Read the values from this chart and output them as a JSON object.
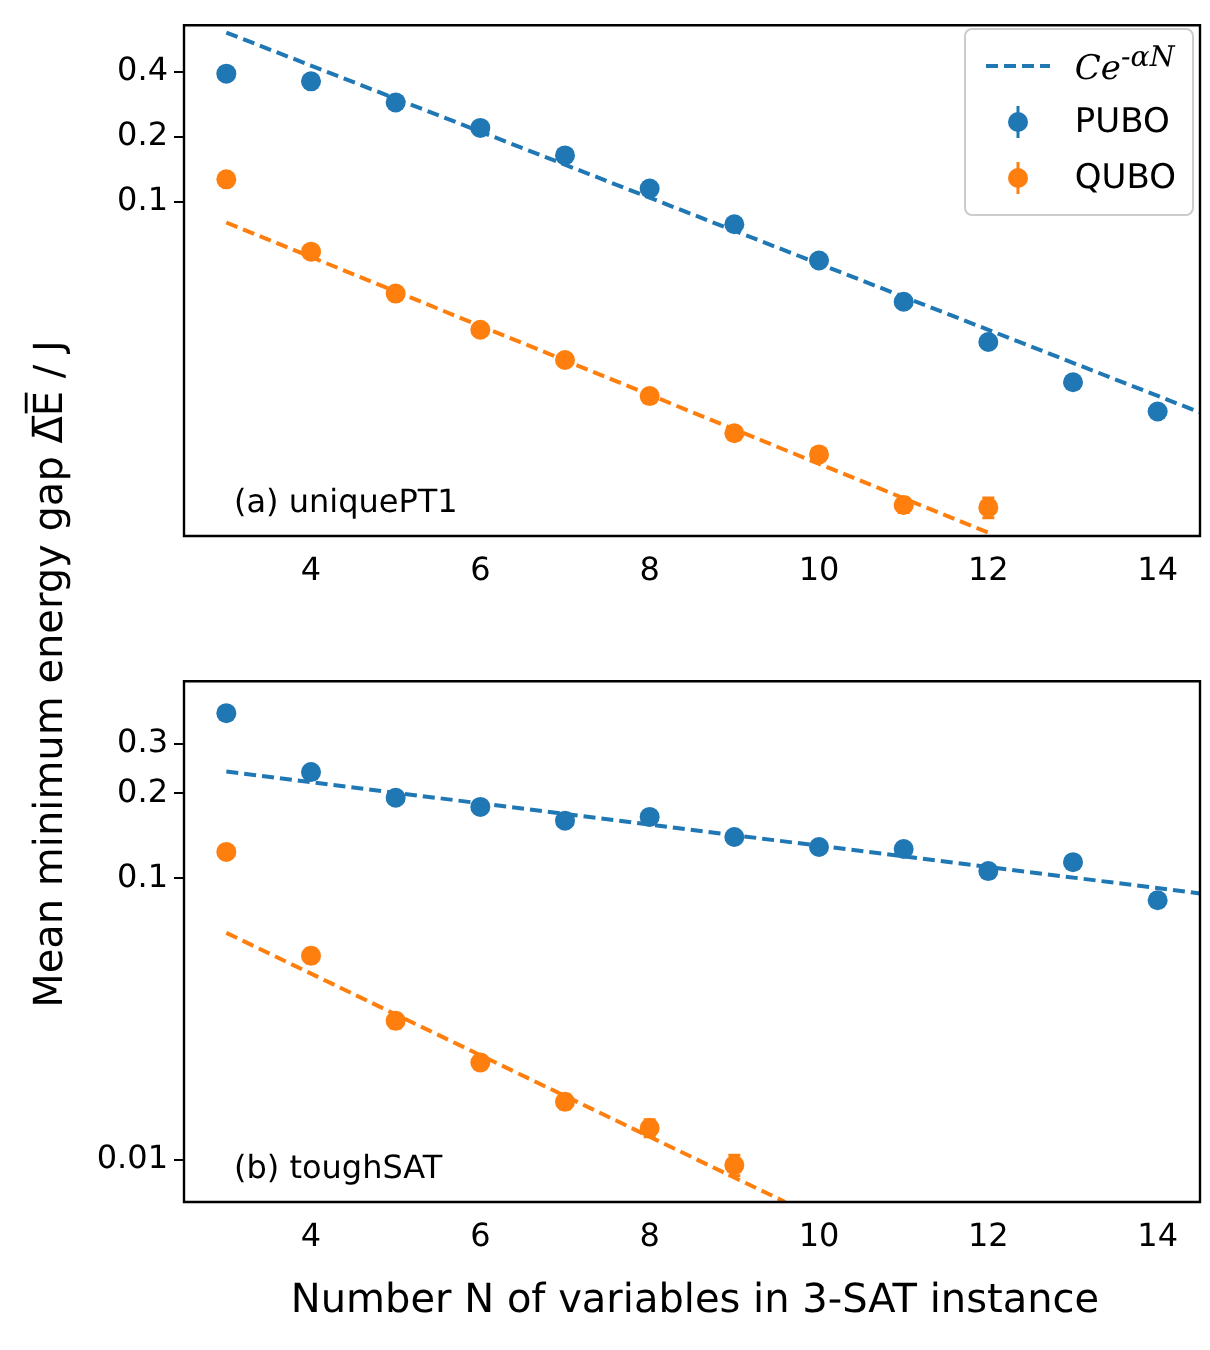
{
  "chart_data": [
    {
      "type": "scatter",
      "ylabel": "Mean minimum energy gap Δ̅E̅ / J",
      "x": [
        3,
        4,
        5,
        6,
        7,
        8,
        9,
        10,
        11,
        12,
        13,
        14
      ],
      "xlim": [
        2.5,
        14.5
      ],
      "xticks": [
        4,
        6,
        8,
        10,
        12,
        14
      ],
      "ylim": [
        0.0028,
        0.66
      ],
      "yticks": [
        0.1,
        0.2,
        0.4
      ],
      "log": "y",
      "legend": "top right",
      "marker": "circle",
      "annotations": [
        "(a) uniquePT1"
      ],
      "series": [
        {
          "name": "Ce$^{-αN}$",
          "type": "line",
          "marker": "none",
          "line_style": "dashed",
          "color": "#1f77b4",
          "x": [
            3,
            14.5
          ],
          "values": [
            0.61,
            0.0105
          ]
        },
        {
          "type": "line",
          "marker": "none",
          "line_style": "dashed",
          "color": "#ff7f0e",
          "x": [
            3,
            12
          ],
          "values": [
            0.08,
            0.0029
          ]
        },
        {
          "name": "PUBO",
          "color": "#1f77b4",
          "values": [
            0.393,
            0.362,
            0.289,
            0.22,
            0.164,
            0.115,
            0.0785,
            0.0533,
            0.0343,
            0.0223,
            0.0145,
            0.0106
          ]
        },
        {
          "name": "QUBO",
          "color": "#ff7f0e",
          "x": [
            3,
            4,
            5,
            6,
            7,
            8,
            9,
            10,
            11,
            12
          ],
          "values": [
            0.127,
            0.0586,
            0.0374,
            0.0254,
            0.0184,
            0.0125,
            0.0084,
            0.0067,
            0.0039,
            0.0038
          ],
          "errors": [
            null,
            null,
            null,
            0.0015,
            null,
            0.0008,
            null,
            null,
            0.0003,
            0.0004
          ]
        }
      ]
    },
    {
      "type": "scatter",
      "xlabel": "Number N of variables in 3-SAT instance",
      "x": [
        3,
        4,
        5,
        6,
        7,
        8,
        9,
        10,
        11,
        12,
        13,
        14
      ],
      "xlim": [
        2.5,
        14.5
      ],
      "xticks": [
        4,
        6,
        8,
        10,
        12,
        14
      ],
      "ylim": [
        0.0071,
        0.5
      ],
      "yticks": [
        0.01,
        0.1,
        0.2,
        0.3
      ],
      "log": "y",
      "marker": "circle",
      "annotations": [
        "(b) toughSAT"
      ],
      "series": [
        {
          "type": "line",
          "marker": "none",
          "line_style": "dashed",
          "color": "#1f77b4",
          "x": [
            3,
            14.5
          ],
          "values": [
            0.239,
            0.0883
          ]
        },
        {
          "type": "line",
          "marker": "none",
          "line_style": "dashed",
          "color": "#ff7f0e",
          "x": [
            3,
            9.6
          ],
          "values": [
            0.064,
            0.0071
          ]
        },
        {
          "color": "#1f77b4",
          "values": [
            0.385,
            0.238,
            0.193,
            0.179,
            0.16,
            0.165,
            0.14,
            0.129,
            0.127,
            0.106,
            0.114,
            0.0835
          ]
        },
        {
          "color": "#ff7f0e",
          "x": [
            3,
            4,
            5,
            6,
            7,
            8,
            9
          ],
          "values": [
            0.124,
            0.0531,
            0.0312,
            0.0222,
            0.0161,
            0.013,
            0.0096
          ],
          "errors": [
            null,
            0.003,
            0.0018,
            0.0012,
            0.0009,
            0.0009,
            0.0008
          ]
        }
      ]
    }
  ]
}
